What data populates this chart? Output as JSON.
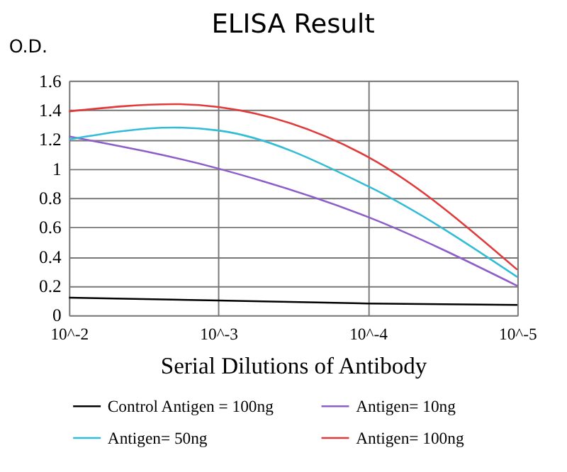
{
  "chart_data": {
    "type": "line",
    "title": "ELISA Result",
    "xlabel": "Serial Dilutions  of Antibody",
    "ylabel": "O.D.",
    "log": "x",
    "xlim": [
      0.01,
      1e-05
    ],
    "xticks": [
      {
        "value": 0.01,
        "label": "10^-2"
      },
      {
        "value": 0.001,
        "label": "10^-3"
      },
      {
        "value": 0.0001,
        "label": "10^-4"
      },
      {
        "value": 1e-05,
        "label": "10^-5"
      }
    ],
    "ylim": [
      0,
      1.6
    ],
    "yticks": [
      0,
      0.2,
      0.4,
      0.6,
      0.8,
      1,
      1.2,
      1.4,
      1.6
    ],
    "grid": true,
    "legend": "bottom",
    "marker": "none",
    "line_style": "solid",
    "series": [
      {
        "name": "Control Antigen = 100ng",
        "color": "#000000",
        "x": [
          0.01,
          0.001,
          0.0001,
          1e-05
        ],
        "values": [
          0.12,
          0.1,
          0.08,
          0.07
        ]
      },
      {
        "name": "Antigen= 10ng",
        "color": "#8e5ec8",
        "x": [
          0.01,
          0.001,
          0.0001,
          1e-05
        ],
        "values": [
          1.22,
          1.0,
          0.67,
          0.2
        ]
      },
      {
        "name": "Antigen= 50ng",
        "color": "#33bcd6",
        "x": [
          0.01,
          0.002,
          0.001,
          0.0001,
          1e-05
        ],
        "values": [
          1.2,
          1.28,
          1.26,
          0.88,
          0.26
        ]
      },
      {
        "name": "Antigen= 100ng",
        "color": "#e03a3a",
        "x": [
          0.01,
          0.002,
          0.001,
          0.0001,
          1e-05
        ],
        "values": [
          1.39,
          1.44,
          1.42,
          1.08,
          0.31
        ]
      }
    ]
  }
}
